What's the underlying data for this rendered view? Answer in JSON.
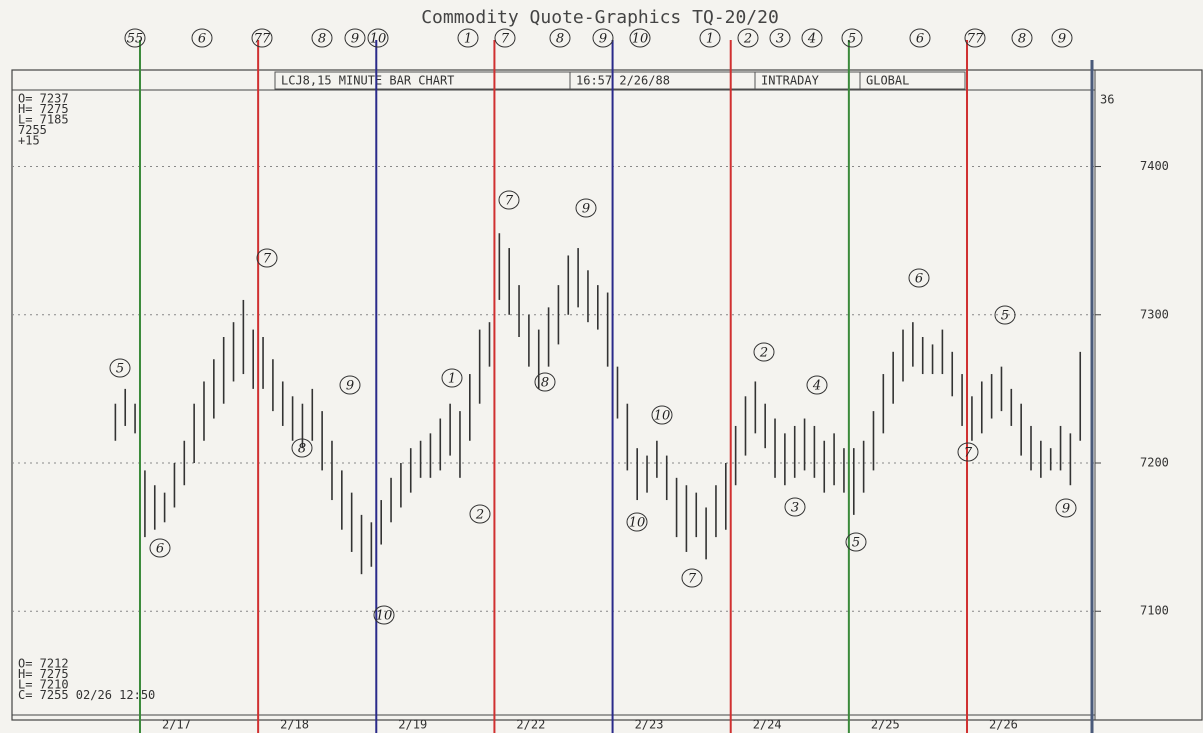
{
  "chart_data": {
    "type": "range-bar",
    "title": "Commodity Quote-Graphics   TQ-20/20",
    "header_fields": [
      "LCJ8,15 MINUTE BAR CHART",
      "16:57   2/26/88",
      "INTRADAY",
      "GLOBAL"
    ],
    "info_top": [
      "O= 7237",
      "H= 7275",
      "L= 7185",
      "   7255",
      "    +15"
    ],
    "info_bottom": [
      "O= 7212",
      "H= 7275",
      "L= 7210",
      "C= 7255 02/26  12:50"
    ],
    "corner_label": "36",
    "color": "#333333",
    "grid": true,
    "ylim": [
      7030,
      7455
    ],
    "yticks": [
      7100,
      7200,
      7300,
      7400
    ],
    "day_line_colors": [
      "#3a8a3a",
      "#d03030",
      "#2a2a8a",
      "#d03030",
      "#2a2a8a",
      "#d03030",
      "#3a8a3a",
      "#d03030",
      "#4a5a7a"
    ],
    "categories": [
      null,
      null,
      null,
      null,
      null,
      null,
      null,
      null,
      null,
      null,
      null,
      null,
      null,
      "2/17",
      null,
      null,
      null,
      null,
      null,
      null,
      null,
      null,
      null,
      null,
      null,
      "2/18",
      null,
      null,
      null,
      null,
      null,
      null,
      null,
      null,
      null,
      null,
      null,
      "2/19",
      null,
      null,
      null,
      null,
      null,
      null,
      null,
      null,
      null,
      null,
      null,
      "2/22",
      null,
      null,
      null,
      null,
      null,
      null,
      null,
      null,
      null,
      null,
      null,
      "2/23",
      null,
      null,
      null,
      null,
      null,
      null,
      null,
      null,
      null,
      null,
      null,
      "2/24",
      null,
      null,
      null,
      null,
      null,
      null,
      null,
      null,
      null,
      null,
      null,
      "2/25",
      null,
      null,
      null,
      null,
      null,
      null,
      null,
      null,
      null,
      null,
      null,
      "2/26",
      null,
      null,
      null,
      null,
      null,
      null,
      null,
      null,
      null,
      null,
      null,
      null
    ],
    "high": [
      null,
      null,
      null,
      null,
      null,
      null,
      null,
      null,
      null,
      null,
      7240,
      7250,
      7240,
      7195,
      7185,
      7180,
      7200,
      7215,
      7240,
      7255,
      7270,
      7285,
      7295,
      7310,
      7290,
      7285,
      7270,
      7255,
      7245,
      7240,
      7250,
      7235,
      7215,
      7195,
      7180,
      7165,
      7160,
      7175,
      7190,
      7200,
      7210,
      7215,
      7220,
      7230,
      7240,
      7235,
      7260,
      7290,
      7295,
      7355,
      7345,
      7320,
      7300,
      7290,
      7305,
      7320,
      7340,
      7345,
      7330,
      7320,
      7315,
      7265,
      7240,
      7210,
      7205,
      7215,
      7205,
      7190,
      7185,
      7180,
      7170,
      7185,
      7200,
      7225,
      7245,
      7255,
      7240,
      7230,
      7220,
      7225,
      7230,
      7225,
      7215,
      7220,
      7210,
      7210,
      7215,
      7235,
      7260,
      7275,
      7290,
      7295,
      7285,
      7280,
      7290,
      7275,
      7260,
      7245,
      7255,
      7260,
      7265,
      7250,
      7240,
      7225,
      7215,
      7210,
      7225,
      7220,
      7275,
      null
    ],
    "low": [
      null,
      null,
      null,
      null,
      null,
      null,
      null,
      null,
      null,
      null,
      7215,
      7225,
      7220,
      7150,
      7155,
      7160,
      7170,
      7185,
      7200,
      7215,
      7230,
      7240,
      7255,
      7260,
      7250,
      7250,
      7235,
      7225,
      7215,
      7210,
      7215,
      7195,
      7175,
      7155,
      7140,
      7125,
      7130,
      7145,
      7160,
      7170,
      7180,
      7190,
      7190,
      7195,
      7205,
      7190,
      7215,
      7240,
      7265,
      7310,
      7300,
      7285,
      7265,
      7250,
      7265,
      7280,
      7300,
      7305,
      7295,
      7290,
      7265,
      7230,
      7195,
      7175,
      7180,
      7190,
      7175,
      7150,
      7140,
      7150,
      7135,
      7150,
      7155,
      7185,
      7205,
      7220,
      7210,
      7190,
      7185,
      7190,
      7195,
      7190,
      7180,
      7185,
      7180,
      7165,
      7180,
      7195,
      7220,
      7240,
      7255,
      7265,
      7260,
      7260,
      7260,
      7245,
      7225,
      7215,
      7220,
      7230,
      7235,
      7225,
      7205,
      7195,
      7190,
      7195,
      7195,
      7185,
      7215,
      null
    ],
    "annotations": [
      "55",
      "6",
      "77",
      "8",
      "9",
      "10",
      "1",
      "7",
      "8",
      "9",
      "10",
      "1",
      "2",
      "3",
      "4",
      "5",
      "6",
      "77",
      "8",
      "9",
      "5",
      "6",
      "7",
      "8",
      "9",
      "1",
      "2",
      "10",
      "7",
      "9",
      "8",
      "10",
      "10",
      "7",
      "2",
      "3",
      "4",
      "5",
      "6",
      "7",
      "5",
      "9"
    ]
  }
}
